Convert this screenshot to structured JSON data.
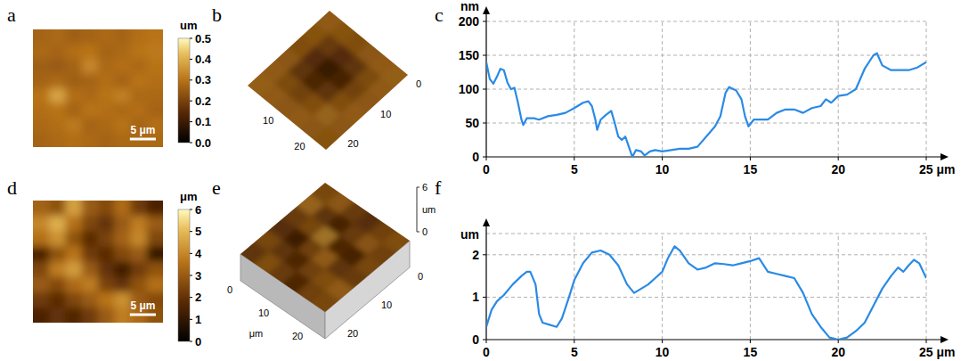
{
  "chart_data": [
    {
      "panel": "a",
      "type": "heatmap",
      "xlim": [
        0,
        25
      ],
      "cells": [
        [
          0.27,
          0.28,
          0.26,
          0.27,
          0.28,
          0.27,
          0.29,
          0.3
        ],
        [
          0.28,
          0.27,
          0.29,
          0.3,
          0.27,
          0.28,
          0.3,
          0.31
        ],
        [
          0.26,
          0.25,
          0.27,
          0.33,
          0.28,
          0.29,
          0.28,
          0.3
        ],
        [
          0.27,
          0.28,
          0.26,
          0.27,
          0.29,
          0.27,
          0.3,
          0.29
        ],
        [
          0.3,
          0.38,
          0.29,
          0.28,
          0.3,
          0.32,
          0.28,
          0.28
        ],
        [
          0.29,
          0.3,
          0.27,
          0.3,
          0.29,
          0.28,
          0.29,
          0.27
        ],
        [
          0.28,
          0.29,
          0.31,
          0.27,
          0.28,
          0.3,
          0.27,
          0.29
        ],
        [
          0.27,
          0.28,
          0.29,
          0.28,
          0.27,
          0.28,
          0.28,
          0.28
        ]
      ],
      "colorbar": {
        "label": "um",
        "range": [
          0,
          0.5
        ],
        "ticks": [
          {
            "value": 0,
            "label": "0.0"
          },
          0.1,
          0.2,
          0.3,
          0.4,
          0.5
        ]
      },
      "scale_bar": {
        "length": 5,
        "label": "5 μm"
      }
    },
    {
      "panel": "b",
      "type": "surface",
      "xlim": [
        0,
        25
      ],
      "ylim": [
        0,
        25
      ],
      "xticks": [
        10,
        20
      ],
      "yticks": [
        0,
        10,
        20
      ],
      "zlim": [
        0,
        0.5
      ],
      "cells": [
        [
          0.3,
          0.28,
          0.27,
          0.29,
          0.3,
          0.31
        ],
        [
          0.28,
          0.22,
          0.18,
          0.2,
          0.26,
          0.3
        ],
        [
          0.27,
          0.18,
          0.12,
          0.15,
          0.24,
          0.29
        ],
        [
          0.29,
          0.2,
          0.16,
          0.2,
          0.27,
          0.3
        ],
        [
          0.3,
          0.26,
          0.24,
          0.27,
          0.32,
          0.29
        ],
        [
          0.31,
          0.3,
          0.29,
          0.3,
          0.29,
          0.28
        ]
      ]
    },
    {
      "panel": "c",
      "type": "line",
      "ylabel": "nm",
      "color": "#2a8ae6",
      "grid": true,
      "x": [
        0,
        0.2,
        0.4,
        0.6,
        0.8,
        1.0,
        1.2,
        1.4,
        1.6,
        1.8,
        2.0,
        2.1,
        2.3,
        2.7,
        3.0,
        3.5,
        4.0,
        4.5,
        5.0,
        5.5,
        5.8,
        6.0,
        6.2,
        6.3,
        6.5,
        6.8,
        7.1,
        7.3,
        7.5,
        7.7,
        7.9,
        8.1,
        8.3,
        8.5,
        8.8,
        9.0,
        9.3,
        9.6,
        10.0,
        10.5,
        11.0,
        11.5,
        12.0,
        12.5,
        13.0,
        13.3,
        13.6,
        13.8,
        14.2,
        14.5,
        14.7,
        14.9,
        15.2,
        15.6,
        16.0,
        16.5,
        17.0,
        17.5,
        18.0,
        18.5,
        19.0,
        19.3,
        19.6,
        20.0,
        20.5,
        21.0,
        21.5,
        22.0,
        22.2,
        22.5,
        23.0,
        23.5,
        24.0,
        24.5,
        25.0
      ],
      "values": [
        140,
        115,
        108,
        118,
        130,
        128,
        110,
        100,
        102,
        80,
        55,
        47,
        57,
        57,
        55,
        60,
        62,
        65,
        72,
        80,
        82,
        75,
        55,
        40,
        55,
        62,
        68,
        50,
        30,
        25,
        30,
        15,
        0,
        10,
        8,
        2,
        8,
        10,
        8,
        10,
        12,
        12,
        15,
        30,
        45,
        60,
        95,
        103,
        98,
        85,
        60,
        45,
        55,
        55,
        55,
        65,
        70,
        70,
        65,
        72,
        75,
        85,
        80,
        90,
        92,
        100,
        130,
        150,
        153,
        135,
        128,
        128,
        128,
        132,
        140
      ],
      "xlim": [
        0,
        25
      ],
      "ylim": [
        0,
        200
      ],
      "xticks": [
        0,
        5,
        10,
        15,
        20,
        {
          "value": 25,
          "label": "25 μm"
        }
      ],
      "yticks": [
        0,
        50,
        100,
        150,
        200
      ]
    },
    {
      "panel": "d",
      "type": "heatmap",
      "xlim": [
        0,
        25
      ],
      "cells": [
        [
          3.2,
          2.8,
          4.5,
          3.0,
          2.6,
          3.4,
          2.2,
          1.5
        ],
        [
          4.0,
          4.8,
          3.5,
          2.5,
          2.0,
          3.0,
          3.8,
          3.0
        ],
        [
          3.5,
          4.2,
          2.8,
          1.8,
          2.4,
          3.2,
          4.0,
          2.5
        ],
        [
          1.5,
          2.8,
          3.6,
          2.2,
          1.8,
          2.6,
          3.0,
          1.0
        ],
        [
          2.5,
          3.8,
          4.4,
          3.0,
          2.0,
          1.2,
          2.2,
          2.8
        ],
        [
          3.0,
          2.6,
          3.4,
          3.8,
          2.4,
          2.0,
          2.8,
          3.5
        ],
        [
          2.2,
          1.8,
          2.5,
          3.0,
          3.6,
          4.2,
          3.0,
          2.6
        ],
        [
          1.5,
          2.0,
          1.6,
          2.2,
          3.0,
          3.8,
          3.4,
          2.8
        ]
      ],
      "colorbar": {
        "label": "μm",
        "range": [
          0,
          6
        ],
        "ticks": [
          0,
          1,
          2,
          3,
          4,
          5,
          6
        ]
      },
      "scale_bar": {
        "length": 5,
        "label": "5 μm"
      }
    },
    {
      "panel": "e",
      "type": "surface",
      "xlim": [
        0,
        25
      ],
      "ylim": [
        0,
        25
      ],
      "xticks": [
        0,
        10,
        20
      ],
      "yticks": [
        0,
        10,
        20
      ],
      "xlabel": "μm",
      "zlim": [
        0,
        6
      ],
      "zticks": [
        0,
        6
      ],
      "zlabel": "um",
      "cells": [
        [
          3.0,
          3.5,
          2.6,
          2.2,
          2.8,
          3.2
        ],
        [
          3.8,
          2.4,
          1.8,
          2.6,
          3.4,
          2.8
        ],
        [
          2.6,
          3.0,
          4.2,
          2.0,
          1.8,
          3.0
        ],
        [
          2.2,
          1.6,
          2.8,
          3.6,
          2.4,
          2.6
        ],
        [
          3.0,
          2.4,
          2.0,
          2.8,
          3.2,
          3.6
        ],
        [
          2.4,
          3.2,
          2.6,
          2.0,
          2.8,
          3.0
        ]
      ]
    },
    {
      "panel": "f",
      "type": "line",
      "ylabel": "um",
      "color": "#2a8ae6",
      "grid": true,
      "x": [
        0,
        0.3,
        0.6,
        1.0,
        1.5,
        2.0,
        2.3,
        2.5,
        2.8,
        3.0,
        3.2,
        3.6,
        4.0,
        4.3,
        4.7,
        5.0,
        5.5,
        6.0,
        6.5,
        7.0,
        7.5,
        8.0,
        8.4,
        8.8,
        9.2,
        9.6,
        10.0,
        10.3,
        10.7,
        11.0,
        11.5,
        12.0,
        12.5,
        13.0,
        13.5,
        14.0,
        14.5,
        15.0,
        15.5,
        16.0,
        16.5,
        17.0,
        17.5,
        18.0,
        18.5,
        19.0,
        19.5,
        20.0,
        20.5,
        21.0,
        21.5,
        22.0,
        22.5,
        23.0,
        23.4,
        23.7,
        24.0,
        24.3,
        24.6,
        25.0
      ],
      "values": [
        0.3,
        0.7,
        0.9,
        1.05,
        1.3,
        1.5,
        1.6,
        1.6,
        1.3,
        0.6,
        0.4,
        0.35,
        0.3,
        0.5,
        1.0,
        1.4,
        1.8,
        2.05,
        2.1,
        2.0,
        1.75,
        1.3,
        1.1,
        1.2,
        1.3,
        1.45,
        1.6,
        1.9,
        2.2,
        2.1,
        1.8,
        1.65,
        1.7,
        1.8,
        1.78,
        1.75,
        1.8,
        1.85,
        1.92,
        1.6,
        1.55,
        1.5,
        1.45,
        1.1,
        0.6,
        0.3,
        0.05,
        0.0,
        0.05,
        0.2,
        0.4,
        0.8,
        1.2,
        1.5,
        1.7,
        1.6,
        1.75,
        1.88,
        1.8,
        1.45
      ],
      "xlim": [
        0,
        25
      ],
      "ylim": [
        0,
        2.5
      ],
      "xticks": [
        0,
        5,
        10,
        15,
        20,
        {
          "value": 25,
          "label": "25 μm"
        }
      ],
      "yticks": [
        0,
        1,
        2
      ]
    }
  ]
}
